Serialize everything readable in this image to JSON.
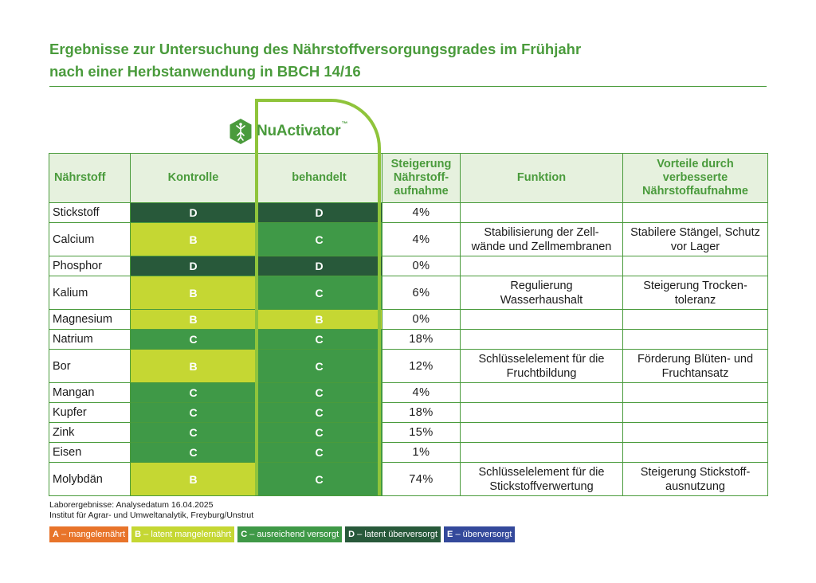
{
  "title": {
    "line1": "Ergebnisse zur Untersuchung des Nährstoffversorgungsgrades im Frühjahr",
    "line2": "nach einer Herbstanwendung in BBCH 14/16"
  },
  "brand": {
    "name": "NuActivator",
    "trademark": "™",
    "icon": "hexagon-root-icon",
    "color": "#4a9b3c",
    "frame_color": "#8fc43b"
  },
  "table": {
    "headers": {
      "nutrient": "Nährstoff",
      "control": "Kontrolle",
      "treated": "behandelt",
      "increase": [
        "Steigerung",
        "Nährstoff-",
        "aufnahme"
      ],
      "function": "Funktion",
      "benefits": [
        "Vorteile durch",
        "verbesserte",
        "Nährstoffaufnahme"
      ]
    },
    "rows": [
      {
        "nutrient": "Stickstoff",
        "control": "D",
        "treated": "D",
        "increase": "4%",
        "function": [],
        "benefit": []
      },
      {
        "nutrient": "Calcium",
        "control": "B",
        "treated": "C",
        "increase": "4%",
        "function": [
          "Stabilisierung der Zell-",
          "wände und Zellmembranen"
        ],
        "benefit": [
          "Stabilere Stängel, Schutz",
          "vor Lager"
        ]
      },
      {
        "nutrient": "Phosphor",
        "control": "D",
        "treated": "D",
        "increase": "0%",
        "function": [],
        "benefit": []
      },
      {
        "nutrient": "Kalium",
        "control": "B",
        "treated": "C",
        "increase": "6%",
        "function": [
          "Regulierung",
          "Wasserhaushalt"
        ],
        "benefit": [
          "Steigerung Trocken-",
          "toleranz"
        ]
      },
      {
        "nutrient": "Magnesium",
        "control": "B",
        "treated": "B",
        "increase": "0%",
        "function": [],
        "benefit": []
      },
      {
        "nutrient": "Natrium",
        "control": "C",
        "treated": "C",
        "increase": "18%",
        "function": [],
        "benefit": []
      },
      {
        "nutrient": "Bor",
        "control": "B",
        "treated": "C",
        "increase": "12%",
        "function": [
          "Schlüsselelement für die",
          "Fruchtbildung"
        ],
        "benefit": [
          "Förderung Blüten- und",
          "Fruchtansatz"
        ]
      },
      {
        "nutrient": "Mangan",
        "control": "C",
        "treated": "C",
        "increase": "4%",
        "function": [],
        "benefit": []
      },
      {
        "nutrient": "Kupfer",
        "control": "C",
        "treated": "C",
        "increase": "18%",
        "function": [],
        "benefit": []
      },
      {
        "nutrient": "Zink",
        "control": "C",
        "treated": "C",
        "increase": "15%",
        "function": [],
        "benefit": []
      },
      {
        "nutrient": "Eisen",
        "control": "C",
        "treated": "C",
        "increase": "1%",
        "function": [],
        "benefit": []
      },
      {
        "nutrient": "Molybdän",
        "control": "B",
        "treated": "C",
        "increase": "74%",
        "function": [
          "Schlüsselelement für die",
          "Stickstoffverwertung"
        ],
        "benefit": [
          "Steigerung Stickstoff-",
          "ausnutzung"
        ]
      }
    ]
  },
  "footnote": {
    "line1": "Laborergebnisse: Analysedatum 16.04.2025",
    "line2": "Institut für Agrar- und Umweltanalytik, Freyburg/Unstrut"
  },
  "legend": [
    {
      "code": "A",
      "label": "mangelernährt",
      "color": "#e8742a"
    },
    {
      "code": "B",
      "label": "latent mangelernährt",
      "color": "#c5d733"
    },
    {
      "code": "C",
      "label": "ausreichend versorgt",
      "color": "#3f9947"
    },
    {
      "code": "D",
      "label": "latent überversorgt",
      "color": "#28593a"
    },
    {
      "code": "E",
      "label": "überversorgt",
      "color": "#34499b"
    }
  ]
}
